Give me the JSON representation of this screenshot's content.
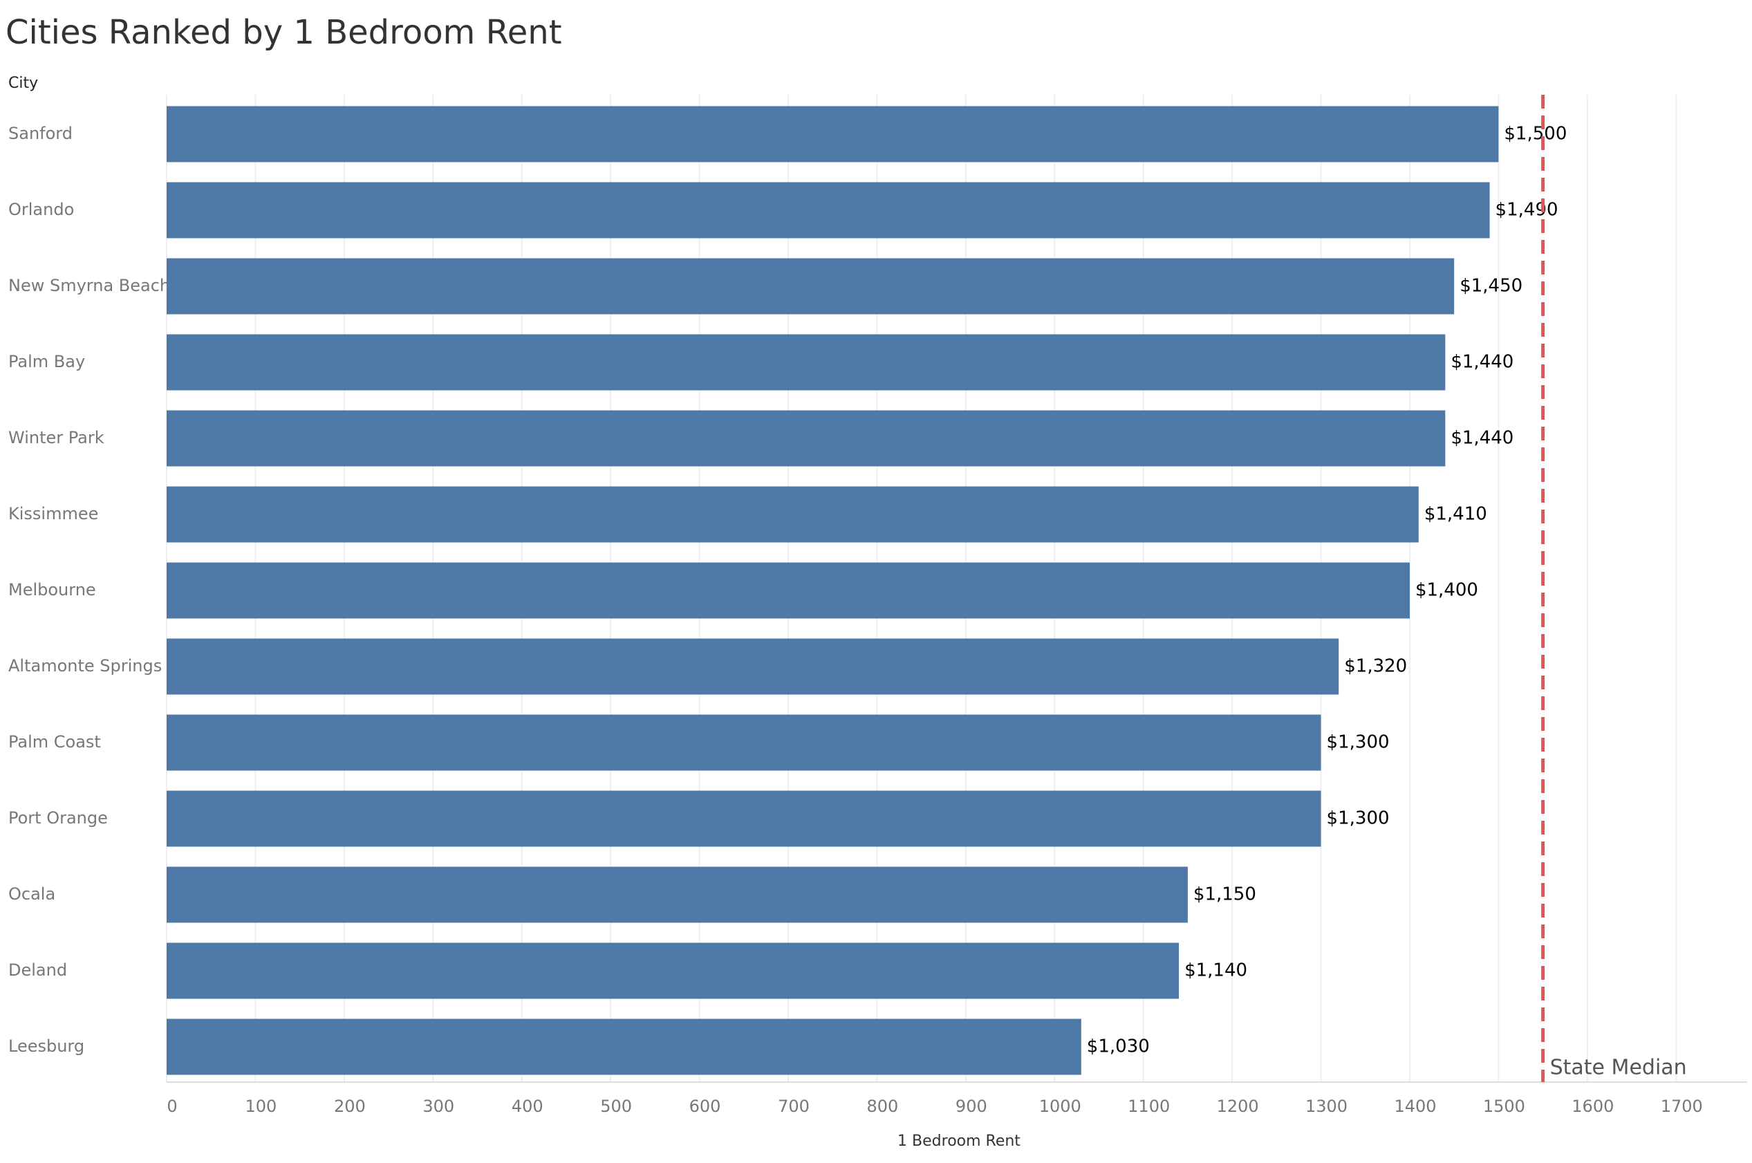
{
  "chart_data": {
    "type": "bar",
    "orientation": "horizontal",
    "title": "Cities Ranked by 1 Bedroom Rent",
    "y_header": "City",
    "x_label": "1 Bedroom Rent",
    "categories": [
      "Sanford",
      "Orlando",
      "New Smyrna Beach",
      "Palm Bay",
      "Winter Park",
      "Kissimmee",
      "Melbourne",
      "Altamonte Springs",
      "Palm Coast",
      "Port Orange",
      "Ocala",
      "Deland",
      "Leesburg"
    ],
    "values": [
      1500,
      1490,
      1450,
      1440,
      1440,
      1410,
      1400,
      1320,
      1300,
      1300,
      1150,
      1140,
      1030
    ],
    "value_labels": [
      "$1,500",
      "$1,490",
      "$1,450",
      "$1,440",
      "$1,440",
      "$1,410",
      "$1,400",
      "$1,320",
      "$1,300",
      "$1,300",
      "$1,150",
      "$1,140",
      "$1,030"
    ],
    "color": "#4e79a7",
    "reference_line": {
      "value": 1550,
      "label": "State Median",
      "color": "#e15759"
    },
    "xlim": [
      0,
      1780
    ],
    "xticks": [
      0,
      100,
      200,
      300,
      400,
      500,
      600,
      700,
      800,
      900,
      1000,
      1100,
      1200,
      1300,
      1400,
      1500,
      1600,
      1700
    ],
    "grid": true
  }
}
